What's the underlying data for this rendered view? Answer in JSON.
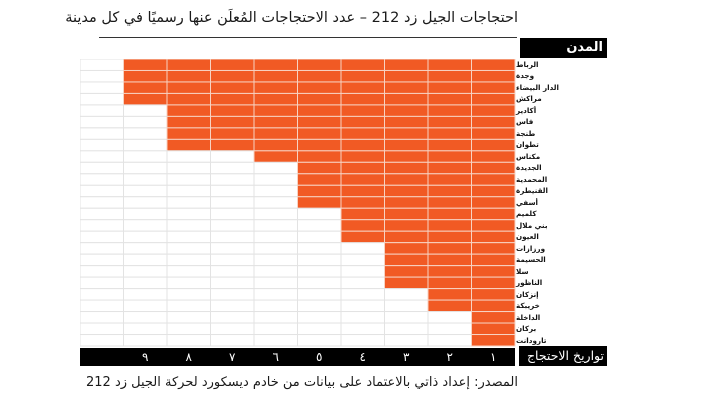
{
  "header": {
    "title": "احتجاجات الجيل زد 212 – عدد الاحتجاجات المُعلَن عنها رسميًا في كل مدينة"
  },
  "chart_data": {
    "type": "heatmap",
    "title": "احتجاجات الجيل زد 212 – عدد الاحتجاجات المُعلَن عنها رسميًا في كل مدينة",
    "ylabel": "المدن",
    "xlabel": "تواريخ الاحتجاج",
    "x_ticks": [
      "١",
      "٢",
      "٣",
      "٤",
      "٥",
      "٦",
      "٧",
      "٨",
      "٩"
    ],
    "columns": 10,
    "fill_color": "#F15A24",
    "empty_color": "#ffffff",
    "categories": [
      "الرباط",
      "وجدة",
      "الدار البيضاء",
      "مراكش",
      "أكادير",
      "فاس",
      "طنجة",
      "تطوان",
      "مكناس",
      "الجديدة",
      "المحمدية",
      "القنيطرة",
      "أسفي",
      "كلميم",
      "بني ملال",
      "العيون",
      "ورزازات",
      "الحسيمة",
      "سلا",
      "الناظور",
      "إنزكان",
      "خريبكة",
      "الداخلة",
      "بركان",
      "تارودانت"
    ],
    "values": [
      9,
      9,
      9,
      9,
      8,
      8,
      8,
      8,
      6,
      5,
      5,
      5,
      5,
      4,
      4,
      4,
      3,
      3,
      3,
      3,
      2,
      2,
      1,
      1,
      1
    ]
  },
  "footer": {
    "source": "المصدر: إعداد ذاتي بالاعتماد على بيانات من خادم ديسكورد لحركة الجيل زد 212"
  }
}
